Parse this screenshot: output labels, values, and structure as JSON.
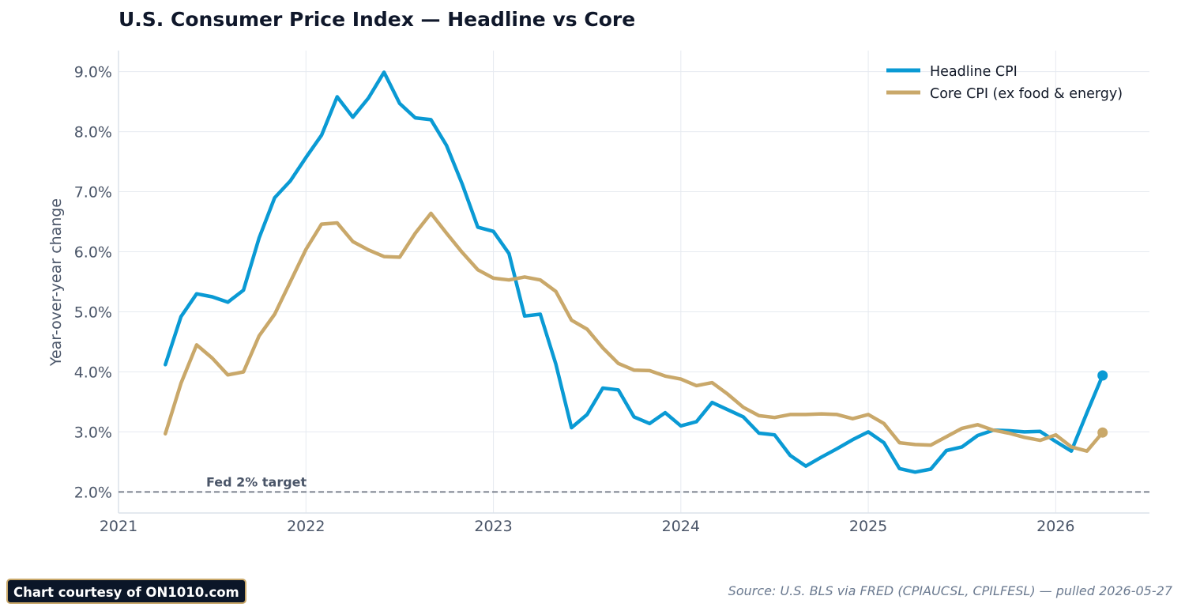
{
  "chart_data": {
    "type": "line",
    "title": "U.S. Consumer Price Index — Headline vs Core",
    "ylabel": "Year-over-year change",
    "xlabel": "",
    "xlim": [
      "2021-01-01",
      "2026-07-01"
    ],
    "ylim": [
      1.65,
      9.35
    ],
    "x_ticks": [
      "2021",
      "2022",
      "2023",
      "2024",
      "2025",
      "2026"
    ],
    "y_ticks": [
      "2.0%",
      "3.0%",
      "4.0%",
      "5.0%",
      "6.0%",
      "7.0%",
      "8.0%",
      "9.0%"
    ],
    "grid": true,
    "legend_position": "top-right",
    "x": [
      "2021-04",
      "2021-05",
      "2021-06",
      "2021-07",
      "2021-08",
      "2021-09",
      "2021-10",
      "2021-11",
      "2021-12",
      "2022-01",
      "2022-02",
      "2022-03",
      "2022-04",
      "2022-05",
      "2022-06",
      "2022-07",
      "2022-08",
      "2022-09",
      "2022-10",
      "2022-11",
      "2022-12",
      "2023-01",
      "2023-02",
      "2023-03",
      "2023-04",
      "2023-05",
      "2023-06",
      "2023-07",
      "2023-08",
      "2023-09",
      "2023-10",
      "2023-11",
      "2023-12",
      "2024-01",
      "2024-02",
      "2024-03",
      "2024-04",
      "2024-05",
      "2024-06",
      "2024-07",
      "2024-08",
      "2024-09",
      "2024-10",
      "2024-11",
      "2024-12",
      "2025-01",
      "2025-02",
      "2025-03",
      "2025-04",
      "2025-05",
      "2025-06",
      "2025-07",
      "2025-08",
      "2025-09",
      "2025-10",
      "2025-11",
      "2025-12",
      "2026-01",
      "2026-02",
      "2026-03",
      "2026-04"
    ],
    "series": [
      {
        "name": "Headline CPI",
        "color": "#0a9ad4",
        "values": [
          4.12,
          4.92,
          5.3,
          5.25,
          5.16,
          5.36,
          6.23,
          6.9,
          7.18,
          7.57,
          7.94,
          8.58,
          8.24,
          8.56,
          8.99,
          8.47,
          8.23,
          8.2,
          7.77,
          7.13,
          6.41,
          6.34,
          5.97,
          4.93,
          4.96,
          4.13,
          3.07,
          3.29,
          3.73,
          3.7,
          3.25,
          3.14,
          3.32,
          3.1,
          3.17,
          3.49,
          3.37,
          3.25,
          2.98,
          2.95,
          2.61,
          2.43,
          2.58,
          2.72,
          2.87,
          3.0,
          2.82,
          2.39,
          2.33,
          2.38,
          2.69,
          2.75,
          2.94,
          3.03,
          3.02,
          3.0,
          3.01,
          2.84,
          2.68,
          3.32,
          3.94
        ]
      },
      {
        "name": "Core CPI (ex food & energy)",
        "color": "#c9a86a",
        "values": [
          2.97,
          3.81,
          4.45,
          4.23,
          3.95,
          4.0,
          4.6,
          4.96,
          5.5,
          6.04,
          6.46,
          6.48,
          6.17,
          6.03,
          5.92,
          5.91,
          6.31,
          6.64,
          6.31,
          5.99,
          5.7,
          5.56,
          5.53,
          5.58,
          5.53,
          5.34,
          4.86,
          4.71,
          4.4,
          4.14,
          4.03,
          4.02,
          3.93,
          3.88,
          3.77,
          3.82,
          3.63,
          3.41,
          3.27,
          3.24,
          3.29,
          3.29,
          3.3,
          3.29,
          3.22,
          3.29,
          3.14,
          2.82,
          2.79,
          2.78,
          2.92,
          3.06,
          3.12,
          3.03,
          2.98,
          2.91,
          2.86,
          2.95,
          2.75,
          2.68,
          2.99
        ]
      }
    ],
    "reference_line": {
      "value": 2.0,
      "label": "Fed 2% target",
      "color": "#6b7280"
    }
  },
  "footer": {
    "credit": "Chart courtesy of ON1010.com",
    "source": "Source: U.S. BLS via FRED (CPIAUCSL, CPILFESL) — pulled 2026-05-27"
  }
}
